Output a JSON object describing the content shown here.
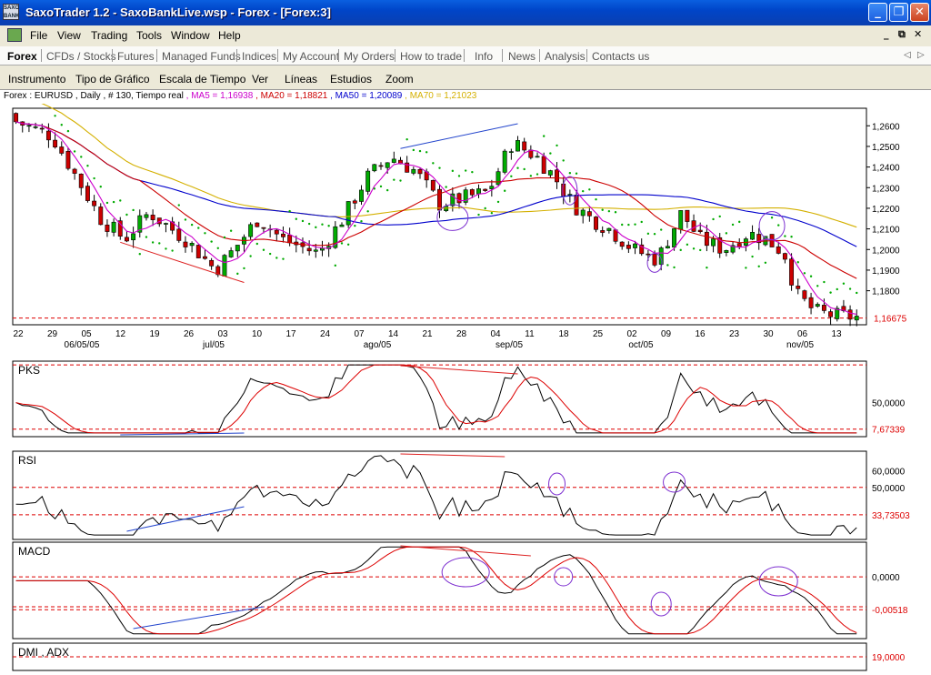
{
  "window": {
    "title": "SaxoTrader 1.2 - SaxoBankLive.wsp - Forex - [Forex:3]",
    "logo_text": "SAXO BANK",
    "min_glyph": "_",
    "max_glyph": "❐",
    "close_glyph": "✕"
  },
  "menu": {
    "items": [
      "File",
      "View",
      "Trading",
      "Tools",
      "Window",
      "Help"
    ],
    "mdi_controls": [
      "_",
      "⧉",
      "✕"
    ]
  },
  "tabs": {
    "items": [
      "Forex",
      "CFDs / Stocks",
      "Futures",
      "Managed Funds",
      "Indices",
      "My Account",
      "My Orders",
      "How to trade",
      "Info",
      "News",
      "Analysis",
      "Contacts us"
    ],
    "active": "Forex",
    "scroll": [
      "◁",
      "▷"
    ]
  },
  "chart_toolbar": {
    "items": [
      "Instrumento",
      "Tipo de Gráfico",
      "Escala de Tiempo",
      "Ver",
      "Líneas",
      "Estudios",
      "Zoom"
    ]
  },
  "infobar": {
    "instrument": "Forex : EURUSD , Daily , # 130, Tiempo real",
    "ma5": "MA5 = 1,16938",
    "ma20": "MA20 = 1,18821",
    "ma50": "MA50 = 1,20089",
    "ma70": "MA70 = 1,21023"
  },
  "colors": {
    "ma5": "#cc00cc",
    "ma20": "#cc0000",
    "ma50": "#0000cc",
    "ma70": "#d4b000",
    "sar": "#00aa00",
    "candle_up": "#00aa00",
    "candle_down": "#cc0000",
    "annot_circle": "#7d2fd0",
    "trend_up": "#2244cc",
    "trend_down": "#dd2222"
  },
  "chart_data": [
    {
      "type": "candlestick",
      "name": "EURUSD price",
      "y_ticks": [
        "1,2600",
        "1,2500",
        "1,2400",
        "1,2300",
        "1,2200",
        "1,2100",
        "1,2000",
        "1,1900",
        "1,1800"
      ],
      "ylim": [
        1.1635,
        1.2685
      ],
      "last_value_label": "1,16675",
      "last_value": 1.16675,
      "x_day_labels": [
        "22",
        "29",
        "05",
        "12",
        "19",
        "26",
        "03",
        "10",
        "17",
        "24",
        "07",
        "14",
        "21",
        "28",
        "04",
        "11",
        "18",
        "25",
        "02",
        "09",
        "16",
        "23",
        "30",
        "06",
        "13"
      ],
      "x_month_labels": [
        "06/05/05",
        "jul/05",
        "ago/05",
        "sep/05",
        "oct/05",
        "nov/05"
      ],
      "ma5_last": 1.16938,
      "ma20_last": 1.18821,
      "ma50_last": 1.20089,
      "ma70_last": 1.21023
    },
    {
      "type": "line",
      "name": "PKS",
      "title": "PKS",
      "y_ticks": [
        "50,0000"
      ],
      "last_value_label": "7,67339"
    },
    {
      "type": "line",
      "name": "RSI",
      "title": "RSI",
      "y_ticks": [
        "60,0000",
        "50,0000"
      ],
      "last_value_label": "33,73503"
    },
    {
      "type": "line",
      "name": "MACD",
      "title": "MACD",
      "y_ticks": [
        "0,0000"
      ],
      "last_value_label": "-0,00518"
    },
    {
      "type": "line",
      "name": "DMI ADX",
      "title": "DMI , ADX",
      "last_value_label": "19,0000"
    }
  ]
}
